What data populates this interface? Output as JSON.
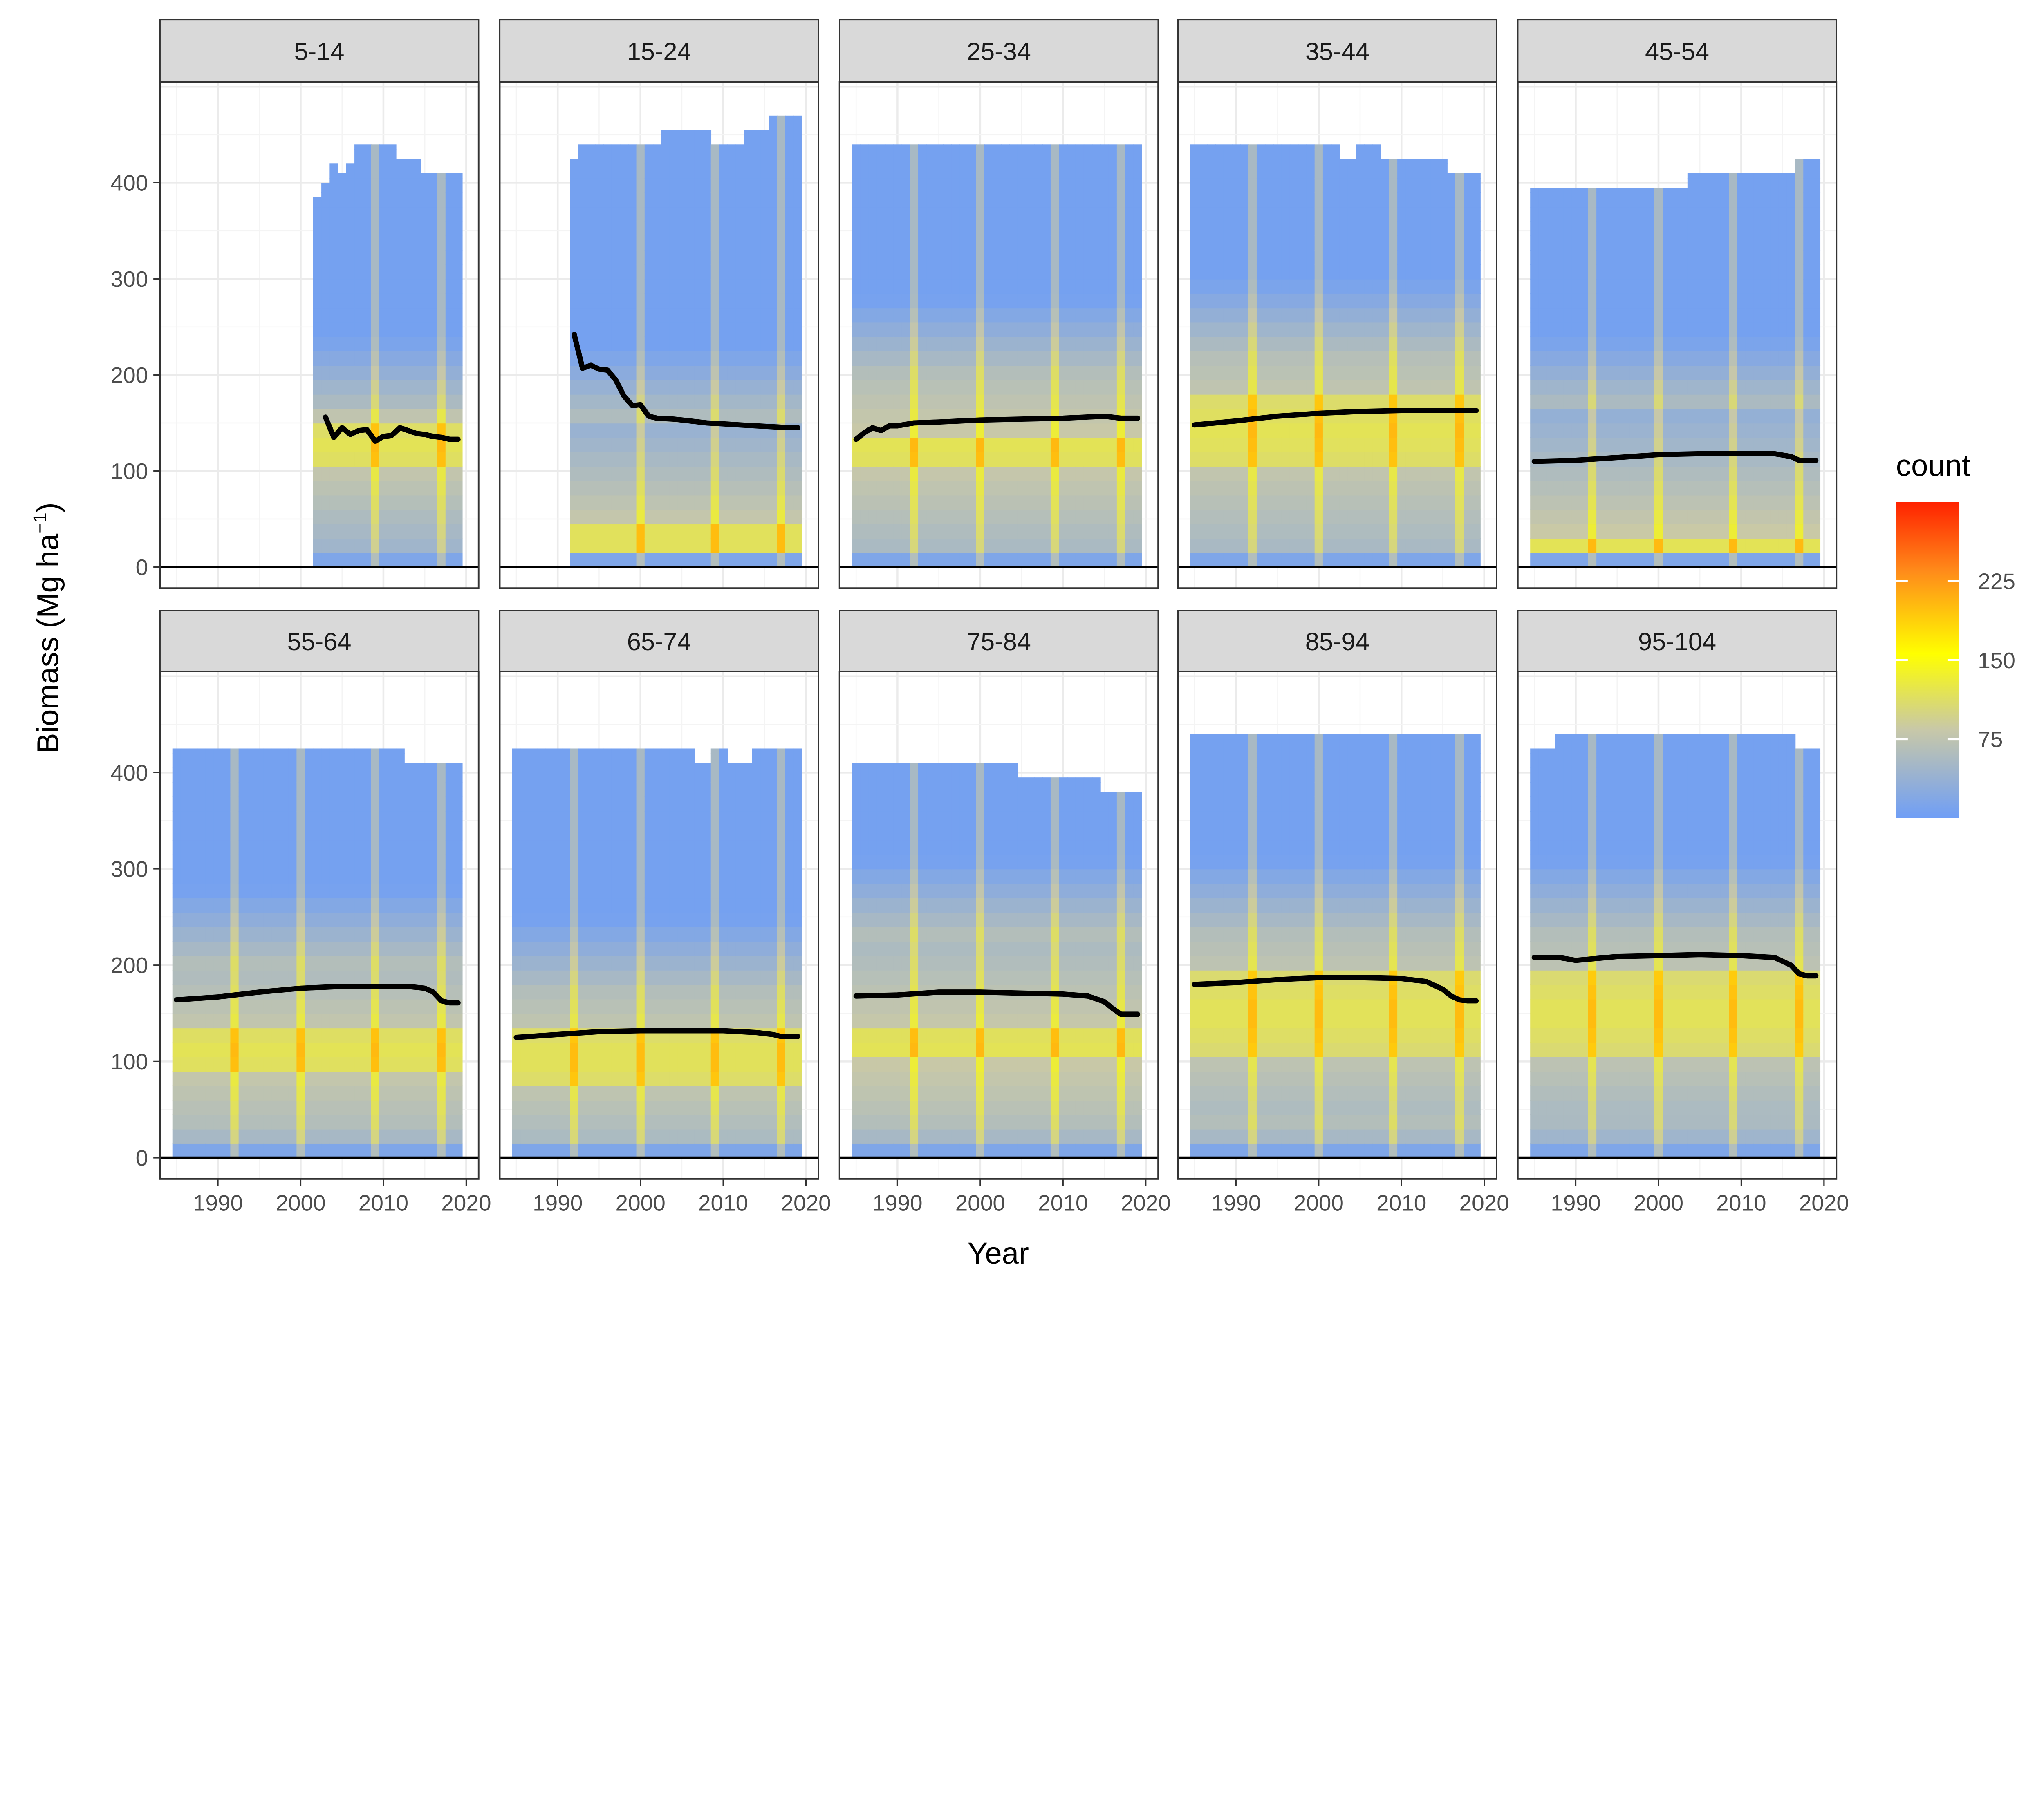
{
  "chart_data": {
    "type": "heatmap",
    "xlabel": "Year",
    "ylabel": "Biomass (Mg ha",
    "ylabel_sup": "−1",
    "ylabel_close": ")",
    "xlim": [
      1983,
      2021.5
    ],
    "ylim": [
      -22,
      505
    ],
    "x_ticks": [
      1990,
      2000,
      2010,
      2020
    ],
    "y_ticks": [
      0,
      100,
      200,
      300,
      400
    ],
    "legend": {
      "title": "count",
      "ticks": [
        75,
        150,
        225
      ],
      "range": [
        0,
        300
      ],
      "position": "right",
      "colors": [
        "#6f9ef6",
        "#c8c8a8",
        "#ffff00",
        "#ff8c1a",
        "#ff2200"
      ]
    },
    "grid": true,
    "colors": {
      "trend_line": "#000000",
      "strip_fill": "#d9d9d9",
      "low": "#6f9ef6",
      "high": "#ff2200"
    },
    "panels": [
      {
        "label": "5-14",
        "x_start": 2002,
        "x_end": 2019,
        "top": [
          385,
          400,
          420,
          410,
          420,
          440,
          440,
          440,
          440,
          440,
          425,
          425,
          425,
          410,
          410,
          410,
          410,
          410
        ],
        "bright_years": [
          2009,
          2017
        ],
        "hot_band": [
          100,
          150
        ],
        "warm_band": [
          20,
          160
        ],
        "line": {
          "x": [
            2003,
            2004,
            2005,
            2006,
            2007,
            2008,
            2009,
            2010,
            2011,
            2012,
            2013,
            2014,
            2015,
            2016,
            2017,
            2018,
            2019
          ],
          "y": [
            156,
            135,
            145,
            138,
            142,
            143,
            131,
            136,
            137,
            145,
            142,
            139,
            138,
            136,
            135,
            133,
            133
          ]
        }
      },
      {
        "label": "15-24",
        "x_start": 1992,
        "x_end": 2019,
        "top": [
          425,
          440,
          440,
          440,
          440,
          440,
          440,
          440,
          440,
          440,
          440,
          455,
          455,
          455,
          455,
          455,
          455,
          440,
          440,
          440,
          440,
          455,
          455,
          455,
          470,
          470,
          470,
          470
        ],
        "bright_years": [
          2000,
          2009,
          2017
        ],
        "hot_band": [
          15,
          45
        ],
        "warm_band": [
          15,
          150
        ],
        "line": {
          "x": [
            1992,
            1993,
            1994,
            1995,
            1996,
            1997,
            1998,
            1999,
            2000,
            2001,
            2002,
            2004,
            2006,
            2008,
            2010,
            2012,
            2014,
            2016,
            2018,
            2019
          ],
          "y": [
            242,
            207,
            210,
            206,
            205,
            195,
            178,
            168,
            169,
            157,
            155,
            154,
            152,
            150,
            149,
            148,
            147,
            146,
            145,
            145
          ]
        }
      },
      {
        "label": "25-34",
        "x_start": 1985,
        "x_end": 2019,
        "top_value": 440,
        "bright_years": [
          1992,
          2000,
          2009,
          2017
        ],
        "hot_band": [
          110,
          140
        ],
        "warm_band": [
          20,
          200
        ],
        "line": {
          "x": [
            1985,
            1986,
            1987,
            1988,
            1989,
            1990,
            1992,
            1995,
            2000,
            2005,
            2010,
            2015,
            2017,
            2019
          ],
          "y": [
            133,
            140,
            145,
            142,
            147,
            147,
            150,
            151,
            153,
            154,
            155,
            157,
            155,
            155
          ]
        }
      },
      {
        "label": "35-44",
        "x_start": 1985,
        "x_end": 2019,
        "top": [
          440,
          440,
          440,
          440,
          440,
          440,
          440,
          440,
          440,
          440,
          440,
          440,
          440,
          440,
          440,
          440,
          440,
          440,
          425,
          425,
          440,
          440,
          440,
          425,
          425,
          425,
          425,
          425,
          425,
          425,
          425,
          410,
          410,
          410,
          410
        ],
        "bright_years": [
          1992,
          2000,
          2009,
          2017
        ],
        "hot_band": [
          100,
          180
        ],
        "warm_band": [
          20,
          220
        ],
        "line": {
          "x": [
            1985,
            1990,
            1995,
            2000,
            2005,
            2010,
            2015,
            2019
          ],
          "y": [
            148,
            152,
            157,
            160,
            162,
            163,
            163,
            163
          ]
        }
      },
      {
        "label": "45-54",
        "x_start": 1985,
        "x_end": 2019,
        "top": [
          395,
          395,
          395,
          395,
          395,
          395,
          395,
          395,
          395,
          395,
          395,
          395,
          395,
          395,
          395,
          395,
          395,
          395,
          395,
          410,
          410,
          410,
          410,
          410,
          410,
          410,
          410,
          410,
          410,
          410,
          410,
          410,
          425,
          425,
          425
        ],
        "bright_years": [
          1992,
          2000,
          2009,
          2017
        ],
        "hot_band": [
          15,
          35
        ],
        "warm_band": [
          15,
          160
        ],
        "line": {
          "x": [
            1985,
            1990,
            1995,
            2000,
            2005,
            2010,
            2014,
            2016,
            2017,
            2019
          ],
          "y": [
            110,
            111,
            114,
            117,
            118,
            118,
            118,
            115,
            111,
            111
          ]
        }
      },
      {
        "label": "55-64",
        "x_start": 1985,
        "x_end": 2019,
        "top": [
          425,
          425,
          425,
          425,
          425,
          425,
          425,
          425,
          425,
          425,
          425,
          425,
          425,
          425,
          425,
          425,
          425,
          425,
          425,
          425,
          425,
          425,
          425,
          425,
          425,
          425,
          425,
          425,
          410,
          410,
          410,
          410,
          410,
          410,
          410
        ],
        "bright_years": [
          1992,
          2000,
          2009,
          2017
        ],
        "hot_band": [
          90,
          130
        ],
        "warm_band": [
          40,
          200
        ],
        "line": {
          "x": [
            1985,
            1990,
            1995,
            2000,
            2005,
            2010,
            2013,
            2015,
            2016,
            2017,
            2018,
            2019
          ],
          "y": [
            164,
            167,
            172,
            176,
            178,
            178,
            178,
            176,
            172,
            163,
            161,
            161
          ]
        }
      },
      {
        "label": "65-74",
        "x_start": 1985,
        "x_end": 2019,
        "top": [
          425,
          425,
          425,
          425,
          425,
          425,
          425,
          425,
          425,
          425,
          425,
          425,
          425,
          425,
          425,
          425,
          425,
          425,
          425,
          425,
          425,
          425,
          410,
          410,
          425,
          425,
          410,
          410,
          410,
          425,
          425,
          425,
          425,
          425,
          425
        ],
        "bright_years": [
          1992,
          2000,
          2009,
          2017
        ],
        "hot_band": [
          80,
          130
        ],
        "warm_band": [
          20,
          170
        ],
        "line": {
          "x": [
            1985,
            1990,
            1995,
            2000,
            2005,
            2010,
            2014,
            2016,
            2017,
            2019
          ],
          "y": [
            125,
            128,
            131,
            132,
            132,
            132,
            130,
            128,
            126,
            126
          ]
        }
      },
      {
        "label": "75-84",
        "x_start": 1985,
        "x_end": 2019,
        "top": [
          410,
          410,
          410,
          410,
          410,
          410,
          410,
          410,
          410,
          410,
          410,
          410,
          410,
          410,
          410,
          410,
          410,
          410,
          410,
          410,
          395,
          395,
          395,
          395,
          395,
          395,
          395,
          395,
          395,
          395,
          380,
          380,
          380,
          380,
          380
        ],
        "bright_years": [
          1992,
          2000,
          2009,
          2017
        ],
        "hot_band": [
          100,
          130
        ],
        "warm_band": [
          40,
          230
        ],
        "line": {
          "x": [
            1985,
            1990,
            1995,
            2000,
            2005,
            2010,
            2013,
            2015,
            2016,
            2017,
            2018,
            2019
          ],
          "y": [
            168,
            169,
            172,
            172,
            171,
            170,
            168,
            162,
            155,
            149,
            149,
            149
          ]
        }
      },
      {
        "label": "85-94",
        "x_start": 1985,
        "x_end": 2019,
        "top_value": 440,
        "bright_years": [
          1992,
          2000,
          2009,
          2017
        ],
        "hot_band": [
          100,
          200
        ],
        "warm_band": [
          40,
          230
        ],
        "line": {
          "x": [
            1985,
            1990,
            1995,
            2000,
            2005,
            2010,
            2013,
            2015,
            2016,
            2017,
            2018,
            2019
          ],
          "y": [
            180,
            182,
            185,
            187,
            187,
            186,
            183,
            175,
            168,
            164,
            163,
            163
          ]
        }
      },
      {
        "label": "95-104",
        "x_start": 1985,
        "x_end": 2019,
        "top": [
          425,
          425,
          425,
          440,
          440,
          440,
          440,
          440,
          440,
          440,
          440,
          440,
          440,
          440,
          440,
          440,
          440,
          440,
          440,
          440,
          440,
          440,
          440,
          440,
          440,
          440,
          440,
          440,
          440,
          440,
          440,
          440,
          425,
          425,
          425
        ],
        "bright_years": [
          1992,
          2000,
          2009,
          2017
        ],
        "hot_band": [
          100,
          200
        ],
        "warm_band": [
          50,
          230
        ],
        "line": {
          "x": [
            1985,
            1988,
            1990,
            1995,
            2000,
            2005,
            2010,
            2014,
            2016,
            2017,
            2018,
            2019
          ],
          "y": [
            208,
            208,
            205,
            209,
            210,
            211,
            210,
            208,
            200,
            191,
            189,
            189
          ]
        }
      }
    ]
  }
}
